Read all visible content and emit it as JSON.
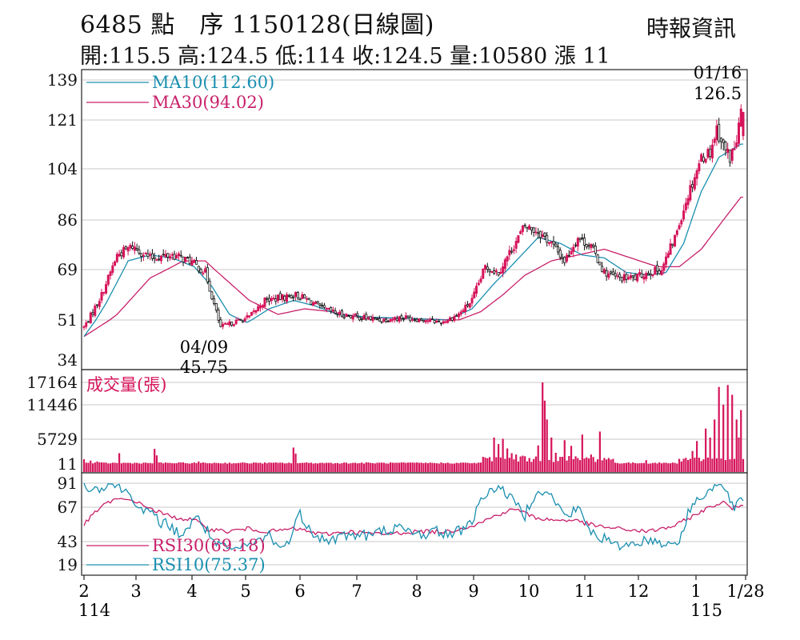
{
  "header": {
    "title": "6485  點　序 1150128(日線圖)",
    "source": "時報資訊",
    "ohlc": "開:115.5 高:124.5 低:114 收:124.5 量:10580 漲 11"
  },
  "colors": {
    "up": "#d6145a",
    "down": "#111111",
    "ma10": "#1a8fb0",
    "ma30": "#c8206a",
    "volume": "#d6145a",
    "rsi10": "#1a8fb0",
    "rsi30": "#c8206a"
  },
  "chart_data": [
    {
      "type": "candlestick",
      "panel": "price",
      "y_ticks": [
        "139",
        "121",
        "104",
        "86",
        "69",
        "51",
        "34"
      ],
      "ylim": [
        34,
        139
      ],
      "x_tick_labels": [
        "2",
        "3",
        "4",
        "5",
        "6",
        "7",
        "8",
        "9",
        "10",
        "11",
        "12",
        "1",
        "1/28"
      ],
      "year_labels": [
        "114",
        "115"
      ],
      "grid": true,
      "legend": [
        {
          "name": "MA10(112.60)",
          "color": "#1a8fb0"
        },
        {
          "name": "MA30(94.02)",
          "color": "#c8206a"
        }
      ],
      "annotations": [
        {
          "date": "04/09",
          "value": "45.75"
        },
        {
          "date": "01/16",
          "value": "126.5"
        }
      ],
      "last_candle": {
        "open": 115.5,
        "high": 124.5,
        "low": 114,
        "close": 124.5
      },
      "close_anchors": [
        [
          0,
          48
        ],
        [
          8,
          60
        ],
        [
          15,
          74
        ],
        [
          22,
          77
        ],
        [
          30,
          73
        ],
        [
          40,
          74
        ],
        [
          48,
          72
        ],
        [
          55,
          68
        ],
        [
          62,
          48
        ],
        [
          68,
          50
        ],
        [
          75,
          52
        ],
        [
          82,
          58
        ],
        [
          90,
          59
        ],
        [
          96,
          60
        ],
        [
          102,
          58
        ],
        [
          108,
          55
        ],
        [
          116,
          53
        ],
        [
          125,
          52
        ],
        [
          135,
          51
        ],
        [
          145,
          52
        ],
        [
          155,
          51
        ],
        [
          162,
          50
        ],
        [
          170,
          53
        ],
        [
          176,
          58
        ],
        [
          182,
          70
        ],
        [
          188,
          68
        ],
        [
          194,
          76
        ],
        [
          200,
          84
        ],
        [
          206,
          82
        ],
        [
          212,
          78
        ],
        [
          218,
          72
        ],
        [
          224,
          80
        ],
        [
          230,
          77
        ],
        [
          236,
          68
        ],
        [
          242,
          66
        ],
        [
          250,
          66
        ],
        [
          256,
          68
        ],
        [
          262,
          69
        ],
        [
          268,
          80
        ],
        [
          274,
          95
        ],
        [
          280,
          108
        ],
        [
          284,
          110
        ],
        [
          287,
          118
        ],
        [
          290,
          112
        ],
        [
          293,
          108
        ],
        [
          296,
          113
        ],
        [
          298,
          124.5
        ]
      ],
      "ma10_anchors": [
        [
          0,
          44
        ],
        [
          10,
          57
        ],
        [
          20,
          72
        ],
        [
          30,
          74
        ],
        [
          40,
          73
        ],
        [
          50,
          70
        ],
        [
          58,
          63
        ],
        [
          66,
          53
        ],
        [
          74,
          50
        ],
        [
          84,
          55
        ],
        [
          95,
          58
        ],
        [
          105,
          56
        ],
        [
          115,
          53
        ],
        [
          130,
          52
        ],
        [
          150,
          51.5
        ],
        [
          165,
          51
        ],
        [
          176,
          55
        ],
        [
          186,
          64
        ],
        [
          196,
          72
        ],
        [
          206,
          80
        ],
        [
          216,
          78
        ],
        [
          226,
          74
        ],
        [
          236,
          73
        ],
        [
          246,
          68
        ],
        [
          256,
          67
        ],
        [
          264,
          68
        ],
        [
          272,
          78
        ],
        [
          280,
          96
        ],
        [
          288,
          108
        ],
        [
          298,
          112.6
        ]
      ],
      "ma30_anchors": [
        [
          0,
          44
        ],
        [
          15,
          53
        ],
        [
          30,
          66
        ],
        [
          45,
          72
        ],
        [
          55,
          72
        ],
        [
          65,
          65
        ],
        [
          75,
          58
        ],
        [
          88,
          53
        ],
        [
          100,
          55
        ],
        [
          112,
          54
        ],
        [
          125,
          52
        ],
        [
          145,
          51.5
        ],
        [
          170,
          51
        ],
        [
          180,
          54
        ],
        [
          190,
          60
        ],
        [
          200,
          67
        ],
        [
          212,
          72
        ],
        [
          224,
          74
        ],
        [
          236,
          76
        ],
        [
          248,
          73
        ],
        [
          260,
          70
        ],
        [
          270,
          70
        ],
        [
          280,
          76
        ],
        [
          290,
          86
        ],
        [
          298,
          94.02
        ]
      ]
    },
    {
      "type": "bar",
      "panel": "volume",
      "title": "成交量(張)",
      "y_ticks": [
        "17164",
        "11446",
        "5729",
        "11"
      ],
      "ylim": [
        11,
        17164
      ],
      "spikes": [
        [
          0,
          1100
        ],
        [
          3,
          800
        ],
        [
          6,
          600
        ],
        [
          16,
          2500
        ],
        [
          32,
          3500
        ],
        [
          33,
          2000
        ],
        [
          52,
          600
        ],
        [
          80,
          300
        ],
        [
          95,
          3800
        ],
        [
          96,
          2400
        ],
        [
          100,
          300
        ],
        [
          150,
          300
        ],
        [
          182,
          1500
        ],
        [
          186,
          6000
        ],
        [
          188,
          4600
        ],
        [
          190,
          5800
        ],
        [
          192,
          3600
        ],
        [
          194,
          2500
        ],
        [
          196,
          2200
        ],
        [
          200,
          1800
        ],
        [
          206,
          4300
        ],
        [
          208,
          17164
        ],
        [
          209,
          12500
        ],
        [
          210,
          9000
        ],
        [
          212,
          6000
        ],
        [
          214,
          2600
        ],
        [
          218,
          5500
        ],
        [
          221,
          4200
        ],
        [
          226,
          6500
        ],
        [
          230,
          2200
        ],
        [
          234,
          7000
        ],
        [
          240,
          1200
        ],
        [
          255,
          900
        ],
        [
          270,
          1200
        ],
        [
          276,
          3000
        ],
        [
          278,
          5300
        ],
        [
          282,
          7500
        ],
        [
          284,
          6000
        ],
        [
          286,
          9000
        ],
        [
          288,
          16000
        ],
        [
          290,
          11500
        ],
        [
          292,
          16500
        ],
        [
          294,
          14000
        ],
        [
          296,
          9000
        ],
        [
          297,
          6000
        ],
        [
          298,
          10580
        ]
      ]
    },
    {
      "type": "line",
      "panel": "rsi",
      "y_ticks": [
        "91",
        "67",
        "43",
        "19"
      ],
      "ylim": [
        19,
        91
      ],
      "series": [
        {
          "name": "RSI30(69.18)",
          "color": "#c8206a",
          "last": 69.18,
          "anchors": [
            [
              0,
              55
            ],
            [
              8,
              68
            ],
            [
              14,
              75
            ],
            [
              22,
              74
            ],
            [
              30,
              66
            ],
            [
              40,
              60
            ],
            [
              50,
              58
            ],
            [
              56,
              52
            ],
            [
              65,
              50
            ],
            [
              74,
              52
            ],
            [
              84,
              50
            ],
            [
              96,
              52
            ],
            [
              108,
              48
            ],
            [
              120,
              50
            ],
            [
              135,
              48
            ],
            [
              150,
              50
            ],
            [
              165,
              50
            ],
            [
              178,
              55
            ],
            [
              188,
              62
            ],
            [
              196,
              66
            ],
            [
              204,
              60
            ],
            [
              212,
              58
            ],
            [
              222,
              58
            ],
            [
              232,
              54
            ],
            [
              242,
              52
            ],
            [
              256,
              50
            ],
            [
              268,
              54
            ],
            [
              280,
              64
            ],
            [
              290,
              72
            ],
            [
              294,
              66
            ],
            [
              298,
              69.18
            ]
          ]
        },
        {
          "name": "RSI10(75.37)",
          "color": "#1a8fb0",
          "last": 75.37,
          "anchors": [
            [
              0,
              88
            ],
            [
              6,
              85
            ],
            [
              12,
              91
            ],
            [
              20,
              82
            ],
            [
              26,
              65
            ],
            [
              34,
              58
            ],
            [
              44,
              48
            ],
            [
              52,
              60
            ],
            [
              60,
              40
            ],
            [
              68,
              34
            ],
            [
              78,
              42
            ],
            [
              84,
              48
            ],
            [
              90,
              35
            ],
            [
              98,
              62
            ],
            [
              104,
              50
            ],
            [
              110,
              43
            ],
            [
              120,
              48
            ],
            [
              130,
              47
            ],
            [
              140,
              53
            ],
            [
              150,
              48
            ],
            [
              160,
              50
            ],
            [
              168,
              48
            ],
            [
              176,
              58
            ],
            [
              182,
              80
            ],
            [
              188,
              88
            ],
            [
              194,
              75
            ],
            [
              200,
              62
            ],
            [
              206,
              85
            ],
            [
              212,
              78
            ],
            [
              218,
              60
            ],
            [
              224,
              66
            ],
            [
              230,
              50
            ],
            [
              236,
              45
            ],
            [
              242,
              38
            ],
            [
              250,
              42
            ],
            [
              258,
              44
            ],
            [
              264,
              40
            ],
            [
              270,
              44
            ],
            [
              276,
              70
            ],
            [
              282,
              82
            ],
            [
              288,
              90
            ],
            [
              292,
              80
            ],
            [
              295,
              64
            ],
            [
              298,
              75.37
            ]
          ]
        }
      ]
    }
  ]
}
